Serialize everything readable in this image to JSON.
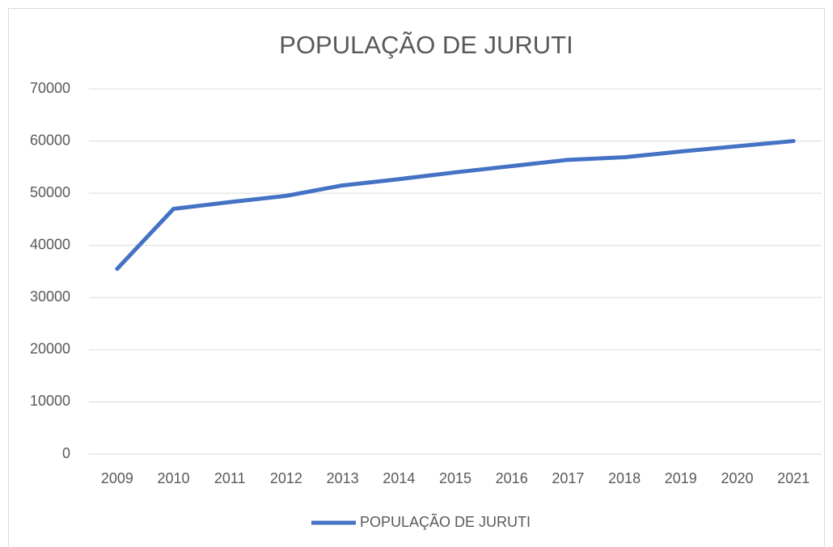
{
  "chart_data": {
    "type": "line",
    "title": "POPULAÇÃO DE JURUTI",
    "categories": [
      "2009",
      "2010",
      "2011",
      "2012",
      "2013",
      "2014",
      "2015",
      "2016",
      "2017",
      "2018",
      "2019",
      "2020",
      "2021"
    ],
    "series": [
      {
        "name": "POPULAÇÃO DE JURUTI",
        "color": "#4472c4",
        "values": [
          35500,
          47000,
          48300,
          49500,
          51500,
          52700,
          54000,
          55200,
          56400,
          56900,
          58000,
          59000,
          60000
        ]
      }
    ],
    "ylim": [
      0,
      70000
    ],
    "yticks": [
      0,
      10000,
      20000,
      30000,
      40000,
      50000,
      60000,
      70000
    ],
    "grid": true,
    "legend": "bottom"
  }
}
